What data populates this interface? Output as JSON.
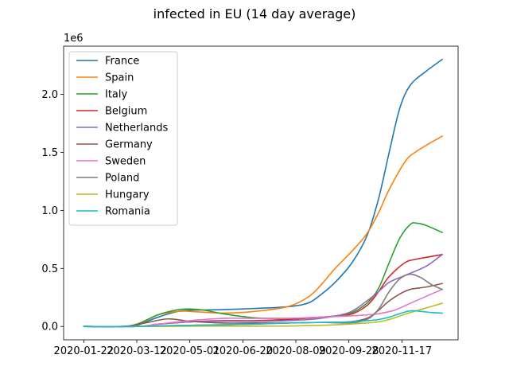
{
  "chart_data": {
    "type": "line",
    "title": "infected in EU (14 day average)",
    "y_offset_label": "1e6",
    "xlabel": "",
    "ylabel": "",
    "x_ticks": [
      "2020-01-22",
      "2020-03-12",
      "2020-05-01",
      "2020-06-20",
      "2020-08-09",
      "2020-09-28",
      "2020-11-17"
    ],
    "y_ticks": [
      "0.0",
      "0.5",
      "1.0",
      "1.5",
      "2.0"
    ],
    "y_tick_values": [
      0,
      0.5,
      1.0,
      1.5,
      2.0
    ],
    "y_scale": 1000000,
    "xlim": [
      "2020-01-03",
      "2021-01-09"
    ],
    "ylim": [
      -0.115,
      2.415
    ],
    "legend_position": "top-left",
    "grid": false,
    "series": [
      {
        "name": "France",
        "color": "#1f77b4",
        "points": [
          [
            "2020-01-22",
            0
          ],
          [
            "2020-03-01",
            0
          ],
          [
            "2020-03-12",
            0.01
          ],
          [
            "2020-04-01",
            0.08
          ],
          [
            "2020-04-20",
            0.13
          ],
          [
            "2020-05-01",
            0.14
          ],
          [
            "2020-06-01",
            0.145
          ],
          [
            "2020-07-01",
            0.155
          ],
          [
            "2020-08-01",
            0.17
          ],
          [
            "2020-08-20",
            0.2
          ],
          [
            "2020-09-01",
            0.27
          ],
          [
            "2020-09-15",
            0.38
          ],
          [
            "2020-10-01",
            0.55
          ],
          [
            "2020-10-15",
            0.78
          ],
          [
            "2020-10-26",
            1.1
          ],
          [
            "2020-11-05",
            1.5
          ],
          [
            "2020-11-15",
            1.88
          ],
          [
            "2020-11-25",
            2.08
          ],
          [
            "2020-12-10",
            2.2
          ],
          [
            "2020-12-25",
            2.3
          ]
        ]
      },
      {
        "name": "Spain",
        "color": "#ff7f0e",
        "points": [
          [
            "2020-01-22",
            0
          ],
          [
            "2020-03-01",
            0
          ],
          [
            "2020-03-12",
            0.01
          ],
          [
            "2020-04-01",
            0.1
          ],
          [
            "2020-04-20",
            0.13
          ],
          [
            "2020-05-01",
            0.13
          ],
          [
            "2020-06-01",
            0.115
          ],
          [
            "2020-07-01",
            0.13
          ],
          [
            "2020-08-01",
            0.17
          ],
          [
            "2020-08-20",
            0.25
          ],
          [
            "2020-09-01",
            0.35
          ],
          [
            "2020-09-15",
            0.5
          ],
          [
            "2020-10-01",
            0.65
          ],
          [
            "2020-10-15",
            0.8
          ],
          [
            "2020-10-26",
            0.98
          ],
          [
            "2020-11-05",
            1.18
          ],
          [
            "2020-11-20",
            1.42
          ],
          [
            "2020-12-01",
            1.51
          ],
          [
            "2020-12-25",
            1.64
          ]
        ]
      },
      {
        "name": "Italy",
        "color": "#2ca02c",
        "points": [
          [
            "2020-01-22",
            0
          ],
          [
            "2020-02-25",
            0
          ],
          [
            "2020-03-12",
            0.02
          ],
          [
            "2020-04-01",
            0.1
          ],
          [
            "2020-04-20",
            0.145
          ],
          [
            "2020-05-01",
            0.15
          ],
          [
            "2020-05-15",
            0.14
          ],
          [
            "2020-06-01",
            0.11
          ],
          [
            "2020-07-01",
            0.075
          ],
          [
            "2020-08-01",
            0.07
          ],
          [
            "2020-09-01",
            0.08
          ],
          [
            "2020-09-28",
            0.11
          ],
          [
            "2020-10-15",
            0.2
          ],
          [
            "2020-10-26",
            0.33
          ],
          [
            "2020-11-05",
            0.55
          ],
          [
            "2020-11-15",
            0.76
          ],
          [
            "2020-11-25",
            0.88
          ],
          [
            "2020-12-01",
            0.89
          ],
          [
            "2020-12-10",
            0.87
          ],
          [
            "2020-12-25",
            0.81
          ]
        ]
      },
      {
        "name": "Belgium",
        "color": "#d62728",
        "points": [
          [
            "2020-01-22",
            0
          ],
          [
            "2020-03-12",
            0
          ],
          [
            "2020-04-01",
            0.02
          ],
          [
            "2020-05-01",
            0.04
          ],
          [
            "2020-06-01",
            0.05
          ],
          [
            "2020-07-01",
            0.05
          ],
          [
            "2020-08-01",
            0.06
          ],
          [
            "2020-09-01",
            0.08
          ],
          [
            "2020-09-28",
            0.1
          ],
          [
            "2020-10-15",
            0.18
          ],
          [
            "2020-10-26",
            0.3
          ],
          [
            "2020-11-05",
            0.43
          ],
          [
            "2020-11-20",
            0.55
          ],
          [
            "2020-12-01",
            0.58
          ],
          [
            "2020-12-25",
            0.62
          ]
        ]
      },
      {
        "name": "Netherlands",
        "color": "#9467bd",
        "points": [
          [
            "2020-01-22",
            0
          ],
          [
            "2020-03-12",
            0
          ],
          [
            "2020-04-01",
            0.02
          ],
          [
            "2020-05-01",
            0.04
          ],
          [
            "2020-06-01",
            0.045
          ],
          [
            "2020-07-01",
            0.045
          ],
          [
            "2020-08-01",
            0.05
          ],
          [
            "2020-09-01",
            0.07
          ],
          [
            "2020-09-28",
            0.12
          ],
          [
            "2020-10-15",
            0.22
          ],
          [
            "2020-10-26",
            0.3
          ],
          [
            "2020-11-05",
            0.38
          ],
          [
            "2020-11-20",
            0.44
          ],
          [
            "2020-12-10",
            0.52
          ],
          [
            "2020-12-25",
            0.62
          ]
        ]
      },
      {
        "name": "Germany",
        "color": "#8c564b",
        "points": [
          [
            "2020-01-22",
            0
          ],
          [
            "2020-03-01",
            0
          ],
          [
            "2020-03-20",
            0.03
          ],
          [
            "2020-04-10",
            0.065
          ],
          [
            "2020-05-01",
            0.045
          ],
          [
            "2020-06-01",
            0.03
          ],
          [
            "2020-07-01",
            0.03
          ],
          [
            "2020-08-01",
            0.03
          ],
          [
            "2020-09-01",
            0.035
          ],
          [
            "2020-09-28",
            0.04
          ],
          [
            "2020-10-15",
            0.07
          ],
          [
            "2020-10-26",
            0.14
          ],
          [
            "2020-11-05",
            0.22
          ],
          [
            "2020-11-15",
            0.28
          ],
          [
            "2020-11-25",
            0.32
          ],
          [
            "2020-12-10",
            0.34
          ],
          [
            "2020-12-25",
            0.37
          ]
        ]
      },
      {
        "name": "Sweden",
        "color": "#e377c2",
        "points": [
          [
            "2020-01-22",
            0
          ],
          [
            "2020-03-12",
            0
          ],
          [
            "2020-04-01",
            0.02
          ],
          [
            "2020-05-01",
            0.05
          ],
          [
            "2020-06-01",
            0.07
          ],
          [
            "2020-07-01",
            0.07
          ],
          [
            "2020-08-01",
            0.07
          ],
          [
            "2020-09-01",
            0.08
          ],
          [
            "2020-09-28",
            0.09
          ],
          [
            "2020-10-15",
            0.1
          ],
          [
            "2020-10-26",
            0.11
          ],
          [
            "2020-11-10",
            0.14
          ],
          [
            "2020-11-25",
            0.2
          ],
          [
            "2020-12-10",
            0.26
          ],
          [
            "2020-12-25",
            0.32
          ]
        ]
      },
      {
        "name": "Poland",
        "color": "#7f7f7f",
        "points": [
          [
            "2020-01-22",
            0
          ],
          [
            "2020-03-12",
            0
          ],
          [
            "2020-04-01",
            0.005
          ],
          [
            "2020-05-01",
            0.01
          ],
          [
            "2020-06-01",
            0.015
          ],
          [
            "2020-07-01",
            0.02
          ],
          [
            "2020-08-01",
            0.03
          ],
          [
            "2020-09-01",
            0.035
          ],
          [
            "2020-09-28",
            0.03
          ],
          [
            "2020-10-15",
            0.06
          ],
          [
            "2020-10-26",
            0.15
          ],
          [
            "2020-11-05",
            0.3
          ],
          [
            "2020-11-15",
            0.41
          ],
          [
            "2020-11-25",
            0.45
          ],
          [
            "2020-12-05",
            0.42
          ],
          [
            "2020-12-15",
            0.36
          ],
          [
            "2020-12-25",
            0.32
          ]
        ]
      },
      {
        "name": "Hungary",
        "color": "#bcbd22",
        "points": [
          [
            "2020-01-22",
            0
          ],
          [
            "2020-03-12",
            0
          ],
          [
            "2020-05-01",
            0.002
          ],
          [
            "2020-06-01",
            0.003
          ],
          [
            "2020-07-01",
            0.003
          ],
          [
            "2020-08-01",
            0.004
          ],
          [
            "2020-09-01",
            0.01
          ],
          [
            "2020-09-28",
            0.02
          ],
          [
            "2020-10-15",
            0.03
          ],
          [
            "2020-10-26",
            0.04
          ],
          [
            "2020-11-05",
            0.06
          ],
          [
            "2020-11-15",
            0.09
          ],
          [
            "2020-11-25",
            0.12
          ],
          [
            "2020-12-10",
            0.16
          ],
          [
            "2020-12-25",
            0.2
          ]
        ]
      },
      {
        "name": "Romania",
        "color": "#17becf",
        "points": [
          [
            "2020-01-22",
            0
          ],
          [
            "2020-03-12",
            0
          ],
          [
            "2020-04-01",
            0.005
          ],
          [
            "2020-05-01",
            0.01
          ],
          [
            "2020-06-01",
            0.015
          ],
          [
            "2020-07-01",
            0.02
          ],
          [
            "2020-08-01",
            0.03
          ],
          [
            "2020-09-01",
            0.035
          ],
          [
            "2020-09-28",
            0.04
          ],
          [
            "2020-10-15",
            0.05
          ],
          [
            "2020-10-26",
            0.06
          ],
          [
            "2020-11-05",
            0.08
          ],
          [
            "2020-11-15",
            0.11
          ],
          [
            "2020-11-25",
            0.135
          ],
          [
            "2020-12-05",
            0.13
          ],
          [
            "2020-12-15",
            0.12
          ],
          [
            "2020-12-25",
            0.115
          ]
        ]
      }
    ]
  }
}
